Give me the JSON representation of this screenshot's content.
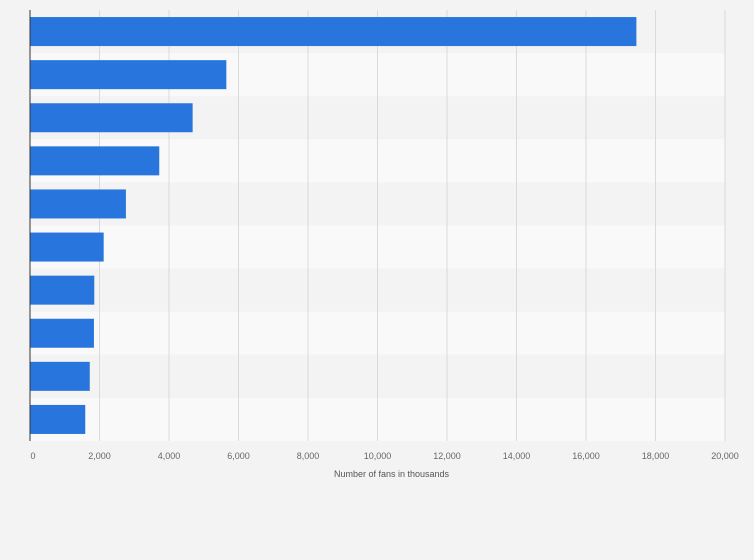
{
  "chart_data": {
    "type": "bar",
    "orientation": "horizontal",
    "categories": [
      "",
      "",
      "",
      "",
      "",
      "",
      "",
      "",
      "",
      ""
    ],
    "values": [
      17450,
      5650,
      4680,
      3720,
      2760,
      2120,
      1850,
      1840,
      1720,
      1590
    ],
    "xlabel": "Number of fans in thousands",
    "xlim": [
      0,
      20000
    ],
    "xticks": [
      0,
      2000,
      4000,
      6000,
      8000,
      10000,
      12000,
      14000,
      16000,
      18000,
      20000
    ],
    "xtick_labels": [
      "0",
      "2,000",
      "4,000",
      "6,000",
      "8,000",
      "10,000",
      "12,000",
      "14,000",
      "16,000",
      "18,000",
      "20,000"
    ],
    "grid": true,
    "legend": "none",
    "colors": {
      "bar": "#2876dd",
      "band_light": "#f9f9f9",
      "band_dark": "#f3f3f3",
      "grid": "#dadada",
      "axis": "#333333",
      "background": "#f3f3f3"
    }
  }
}
